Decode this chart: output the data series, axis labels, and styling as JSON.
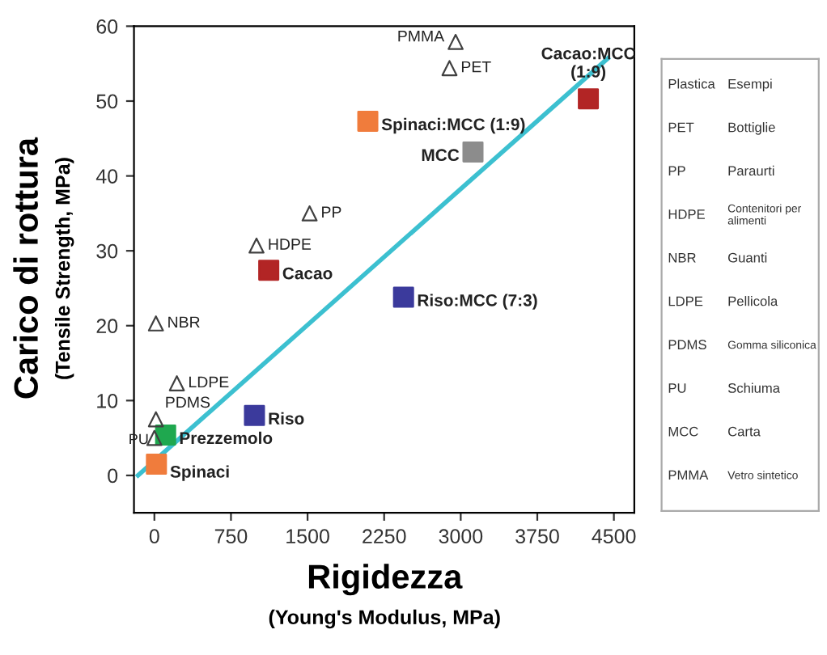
{
  "chart_data": {
    "type": "scatter",
    "xlabel": "Rigidezza\n(Young's Modulus, MPa)",
    "ylabel": "Carico di rottura\n(Tensile Strength, MPa)",
    "xlim": [
      -200,
      4700
    ],
    "xticks": [
      0,
      750,
      1500,
      2250,
      3000,
      3750,
      4500
    ],
    "ylim": [
      -5,
      60
    ],
    "yticks": [
      0,
      10,
      20,
      30,
      40,
      50,
      60
    ],
    "grid": false,
    "legend": false,
    "series": [
      {
        "type": "scatter",
        "marker": "square",
        "x": [
          20,
          110,
          980,
          1120,
          2440,
          2090,
          3120,
          4250
        ],
        "values": [
          1.5,
          5.4,
          8,
          27.4,
          23.8,
          47.3,
          43.2,
          50.3
        ],
        "colors": [
          "#f07c3c",
          "#1fa84f",
          "#3b3a9c",
          "#b22525",
          "#3b3a9c",
          "#f07c3c",
          "#8c8c8c",
          "#b22525"
        ]
      },
      {
        "type": "scatter",
        "marker": "triangle",
        "color": "#404040",
        "x": [
          2950,
          2890,
          1520,
          1000,
          15,
          220,
          15,
          0
        ],
        "values": [
          57.9,
          54.4,
          35,
          30.7,
          20.3,
          12.3,
          7.5,
          5
        ]
      },
      {
        "type": "line",
        "color": "#3cc0d0",
        "x": [
          -160,
          4440
        ],
        "values": [
          0,
          55.7
        ]
      }
    ],
    "annotations": [
      {
        "text": "Spinaci",
        "x": 20,
        "y": 1.5
      },
      {
        "text": "Prezzemolo",
        "x": 110,
        "y": 5.4
      },
      {
        "text": "Riso",
        "x": 980,
        "y": 8
      },
      {
        "text": "Cacao",
        "x": 1120,
        "y": 27.4
      },
      {
        "text": "Riso:MCC (7:3)",
        "x": 2440,
        "y": 23.8
      },
      {
        "text": "Spinaci:MCC (1:9)",
        "x": 2090,
        "y": 47.3
      },
      {
        "text": "MCC",
        "x": 3120,
        "y": 43.2
      },
      {
        "text": "Cacao:MCC\n(1:9)",
        "x": 4250,
        "y": 50.3
      },
      {
        "text": "PMMA",
        "x": 2950,
        "y": 57.9
      },
      {
        "text": "PET",
        "x": 2890,
        "y": 54.4
      },
      {
        "text": "PP",
        "x": 1520,
        "y": 35
      },
      {
        "text": "HDPE",
        "x": 1000,
        "y": 30.7
      },
      {
        "text": "NBR",
        "x": 15,
        "y": 20.3
      },
      {
        "text": "LDPE",
        "x": 220,
        "y": 12.3
      },
      {
        "text": "PDMS",
        "x": 15,
        "y": 7.5
      },
      {
        "text": "PU",
        "x": 0,
        "y": 5
      },
      "Plastica",
      "Esempi",
      "PET",
      "Bottiglie",
      "PP",
      "Paraurti",
      "HDPE",
      "Contenitori per alimenti",
      "NBR",
      "Guanti",
      "LDPE",
      "Pellicola",
      "PDMS",
      "Gomma siliconica",
      "PU",
      "Schiuma",
      "MCC",
      "Carta",
      "PMMA",
      "Vetro sintetico"
    ]
  }
}
